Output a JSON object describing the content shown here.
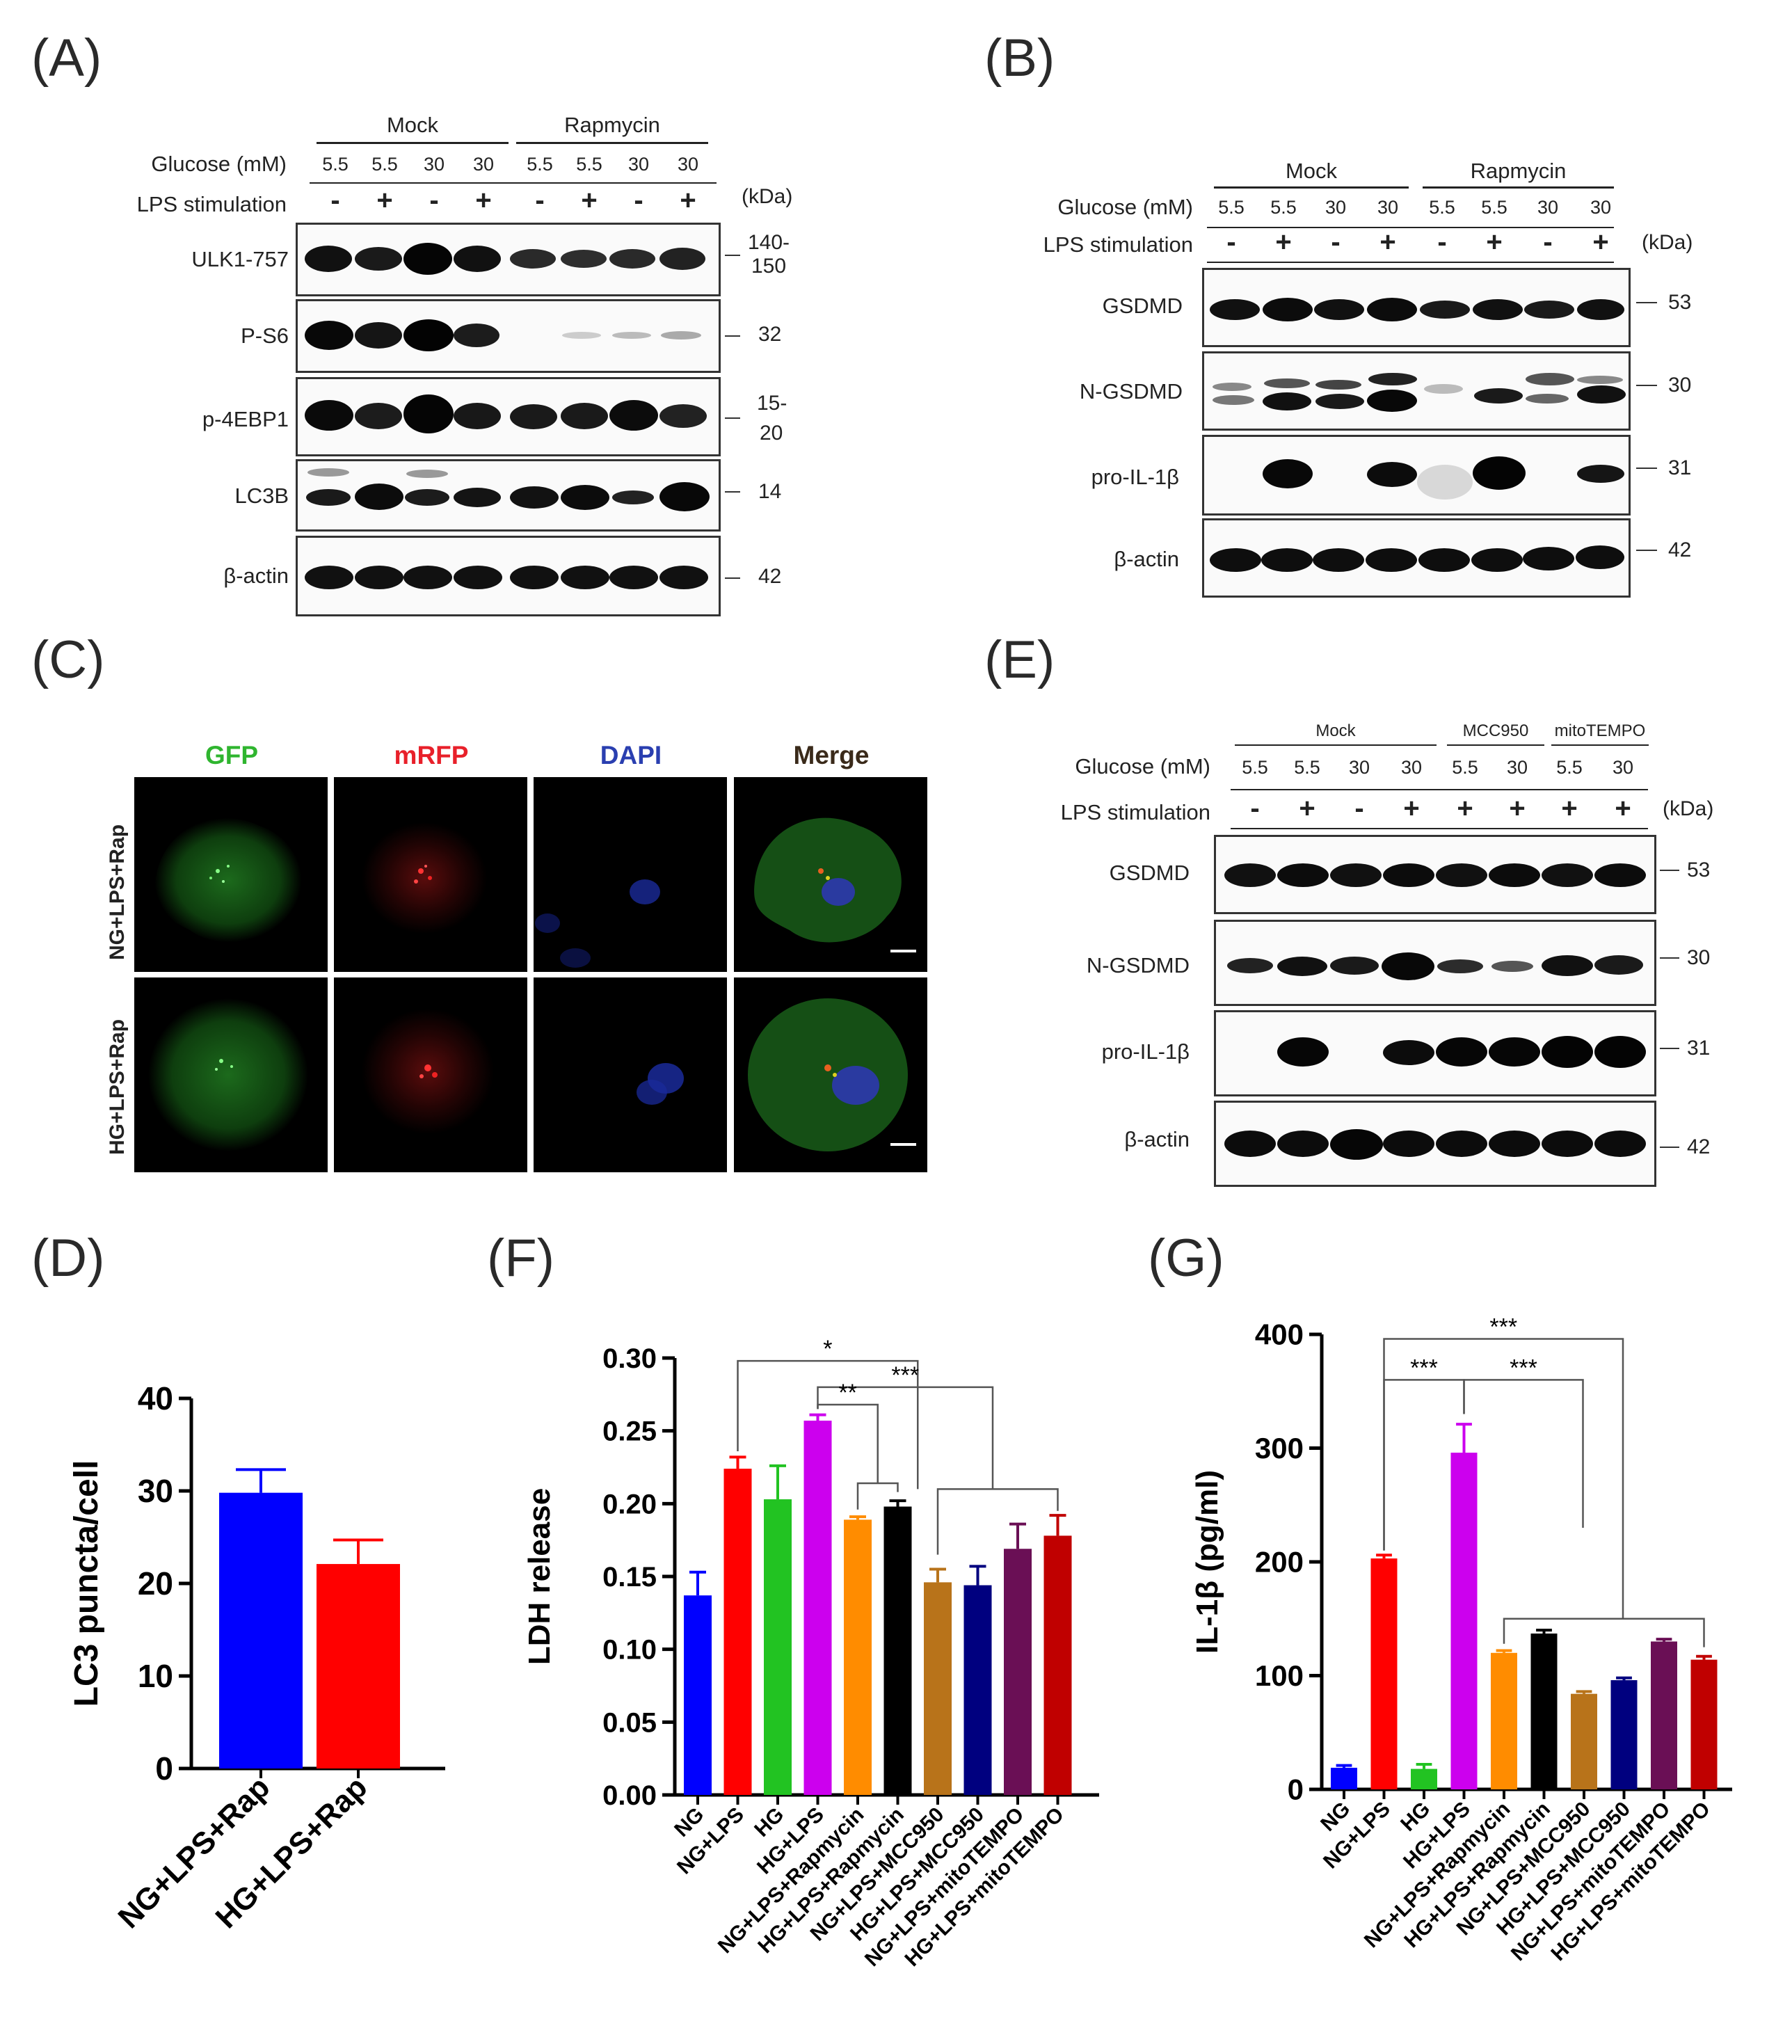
{
  "panels": {
    "A": "(A)",
    "B": "(B)",
    "C": "(C)",
    "D": "(D)",
    "E": "(E)",
    "F": "(F)",
    "G": "(G)"
  },
  "common": {
    "glucose": "Glucose (mM)",
    "lps": "LPS stimulation",
    "kda": "(kDa)",
    "mock": "Mock",
    "rapamycin": "Rapmycin",
    "mcc950": "MCC950",
    "mitotempo": "mitoTEMPO",
    "v55": "5.5",
    "v30": "30",
    "minus": "-",
    "plus": "+"
  },
  "blotA": {
    "rows": [
      "ULK1-757",
      "P-S6",
      "p-4EBP1",
      "LC3B",
      "β-actin"
    ],
    "kda": [
      [
        "140-",
        "150"
      ],
      [
        "32"
      ],
      [
        "15-",
        "20"
      ],
      [
        "14"
      ],
      [
        "42"
      ]
    ]
  },
  "blotB": {
    "rows": [
      "GSDMD",
      "N-GSDMD",
      "pro-IL-1β",
      "β-actin"
    ],
    "kda": [
      "53",
      "30",
      "31",
      "42"
    ]
  },
  "blotE": {
    "rows": [
      "GSDMD",
      "N-GSDMD",
      "pro-IL-1β",
      "β-actin"
    ],
    "kda": [
      "53",
      "30",
      "31",
      "42"
    ]
  },
  "panelC": {
    "channels": [
      "GFP",
      "mRFP",
      "DAPI",
      "Merge"
    ],
    "channel_colors": [
      "#2fb52f",
      "#e8202a",
      "#2a3fb0",
      "#3a2a1a"
    ],
    "rows": [
      "NG+LPS+Rap",
      "HG+LPS+Rap"
    ]
  },
  "chart_data": [
    {
      "type": "bar",
      "panel": "D",
      "ylabel": "LC3 puncta/cell",
      "categories": [
        "NG+LPS+Rap",
        "HG+LPS+Rap"
      ],
      "values": [
        29.8,
        22.1
      ],
      "errors": [
        2.5,
        2.6
      ],
      "colors": [
        "#0000ff",
        "#ff0000"
      ],
      "ylim": [
        0,
        40
      ],
      "yticks": [
        "0",
        "10",
        "20",
        "30",
        "40"
      ]
    },
    {
      "type": "bar",
      "panel": "F",
      "ylabel": "LDH release",
      "categories": [
        "NG",
        "NG+LPS",
        "HG",
        "HG+LPS",
        "NG+LPS+Rapmycin",
        "HG+LPS+Rapmycin",
        "NG+LPS+MCC950",
        "HG+LPS+MCC950",
        "NG+LPS+mitoTEMPO",
        "HG+LPS+mitoTEMPO"
      ],
      "values": [
        0.137,
        0.224,
        0.203,
        0.257,
        0.189,
        0.198,
        0.146,
        0.144,
        0.169,
        0.178
      ],
      "errors": [
        0.016,
        0.008,
        0.023,
        0.004,
        0.002,
        0.004,
        0.009,
        0.013,
        0.017,
        0.014
      ],
      "colors": [
        "#0000ff",
        "#ff0000",
        "#22c322",
        "#cc00ee",
        "#ff8c00",
        "#000000",
        "#b8731a",
        "#00007f",
        "#6a0f55",
        "#c00000"
      ],
      "ylim": [
        0,
        0.3
      ],
      "yticks": [
        "0.00",
        "0.05",
        "0.10",
        "0.15",
        "0.20",
        "0.25",
        "0.30"
      ],
      "significance": [
        "*",
        "***",
        "**"
      ]
    },
    {
      "type": "bar",
      "panel": "G",
      "ylabel": "IL-1β (pg/ml)",
      "categories": [
        "NG",
        "NG+LPS",
        "HG",
        "HG+LPS",
        "NG+LPS+Rapmycin",
        "HG+LPS+Rapmycin",
        "NG+LPS+MCC950",
        "HG+LPS+MCC950",
        "NG+LPS+mitoTEMPO",
        "HG+LPS+mitoTEMPO"
      ],
      "values": [
        19,
        203,
        18,
        296,
        120,
        137,
        84,
        96,
        130,
        114
      ],
      "errors": [
        2,
        3,
        4,
        25,
        2,
        3,
        2,
        2,
        2,
        3
      ],
      "colors": [
        "#0000ff",
        "#ff0000",
        "#22c322",
        "#cc00ee",
        "#ff8c00",
        "#000000",
        "#b8731a",
        "#00007f",
        "#6a0f55",
        "#c00000"
      ],
      "ylim": [
        0,
        400
      ],
      "yticks": [
        "0",
        "100",
        "200",
        "300",
        "400"
      ],
      "significance": [
        "***",
        "***",
        "***"
      ]
    }
  ]
}
